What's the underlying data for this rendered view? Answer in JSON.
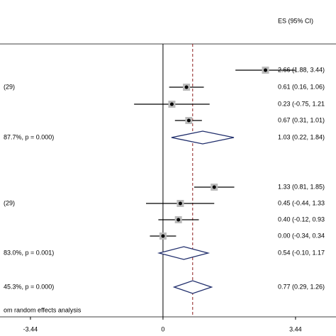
{
  "chart_data": {
    "type": "forest",
    "es_header": "ES (95% CI)",
    "footer": "om random effects analysis",
    "xlim": [
      -4.23,
      4.49
    ],
    "xticks": [
      -3.44,
      0,
      3.44
    ],
    "overall_line_color": "#8b1a1a",
    "rows": [
      {
        "kind": "study",
        "es": 2.66,
        "lo": 1.88,
        "hi": 3.44,
        "es_label": "2.66 (1.88, 3.44)"
      },
      {
        "kind": "study",
        "es": 0.61,
        "lo": 0.16,
        "hi": 1.06,
        "es_label": "0.61 (0.16, 1.06)",
        "left": "(29)"
      },
      {
        "kind": "study",
        "es": 0.23,
        "lo": -0.75,
        "hi": 1.21,
        "es_label": "0.23 (-0.75, 1.21"
      },
      {
        "kind": "study",
        "es": 0.67,
        "lo": 0.31,
        "hi": 1.01,
        "es_label": "0.67 (0.31, 1.01)"
      },
      {
        "kind": "pooled",
        "es": 1.03,
        "lo": 0.22,
        "hi": 1.84,
        "es_label": "1.03 (0.22, 1.84)",
        "left": "87.7%, p = 0.000)"
      },
      {
        "kind": "study",
        "es": 1.33,
        "lo": 0.81,
        "hi": 1.85,
        "es_label": "1.33 (0.81, 1.85)"
      },
      {
        "kind": "study",
        "es": 0.45,
        "lo": -0.44,
        "hi": 1.33,
        "es_label": "0.45 (-0.44, 1.33",
        "left": "(29)"
      },
      {
        "kind": "study",
        "es": 0.4,
        "lo": -0.12,
        "hi": 0.93,
        "es_label": "0.40 (-0.12, 0.93"
      },
      {
        "kind": "study",
        "es": 0.0,
        "lo": -0.34,
        "hi": 0.34,
        "es_label": "0.00 (-0.34, 0.34"
      },
      {
        "kind": "pooled",
        "es": 0.54,
        "lo": -0.1,
        "hi": 1.17,
        "es_label": "0.54 (-0.10, 1.17",
        "left": "83.0%, p = 0.001)"
      },
      {
        "kind": "pooled",
        "es": 0.77,
        "lo": 0.29,
        "hi": 1.26,
        "es_label": "0.77 (0.29, 1.26)",
        "left": "45.3%, p = 0.000)"
      }
    ]
  }
}
